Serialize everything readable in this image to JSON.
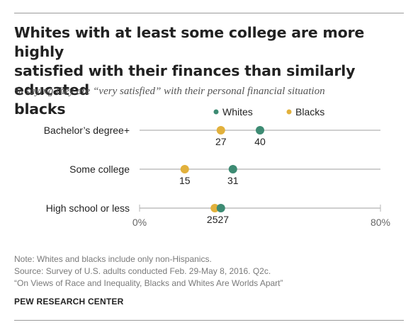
{
  "header": {
    "title_lines": [
      "Whites with at least some college are more highly",
      "satisfied with their finances than similarly educated",
      "blacks"
    ],
    "subtitle": "% saying they are “very satisfied” with their personal financial situation"
  },
  "colors": {
    "whites": "#3d8b73",
    "blacks": "#e2b13c",
    "axis_line": "#cfcfcf",
    "text": "#222222"
  },
  "chart_data": {
    "type": "dot",
    "categories": [
      "Bachelor’s degree+",
      "Some college",
      "High school or less"
    ],
    "series": [
      {
        "name": "Whites",
        "values": [
          40,
          31,
          27
        ]
      },
      {
        "name": "Blacks",
        "values": [
          27,
          15,
          25
        ]
      }
    ],
    "xlim": [
      0,
      80
    ],
    "x_ticks": [
      "0%",
      "80%"
    ],
    "legend_position": "top"
  },
  "footer": {
    "note_lines": [
      "Note: Whites and blacks include only non-Hispanics.",
      "Source: Survey of U.S. adults conducted Feb. 29-May 8, 2016. Q2c.",
      "“On Views of Race and Inequality, Blacks and Whites Are Worlds Apart”"
    ],
    "organization": "PEW RESEARCH CENTER"
  }
}
